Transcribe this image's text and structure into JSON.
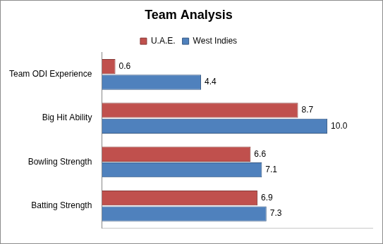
{
  "chart_data": {
    "type": "bar",
    "orientation": "horizontal",
    "title": "Team Analysis",
    "categories": [
      "Team ODI Experience",
      "Big Hit Ability",
      "Bowling Strength",
      "Batting Strength"
    ],
    "series": [
      {
        "name": "U.A.E.",
        "color": "#c0504d",
        "values": [
          0.6,
          8.7,
          6.6,
          6.9
        ],
        "value_labels": [
          "0.6",
          "8.7",
          "6.6",
          "6.9"
        ]
      },
      {
        "name": "West Indies",
        "color": "#4f81bd",
        "values": [
          4.4,
          10.0,
          7.1,
          7.3
        ],
        "value_labels": [
          "4.4",
          "10.0",
          "7.1",
          "7.3"
        ]
      }
    ],
    "xlim": [
      0,
      12
    ],
    "grid": false,
    "legend": "top",
    "data_labels": true,
    "tick_labels": "y"
  }
}
